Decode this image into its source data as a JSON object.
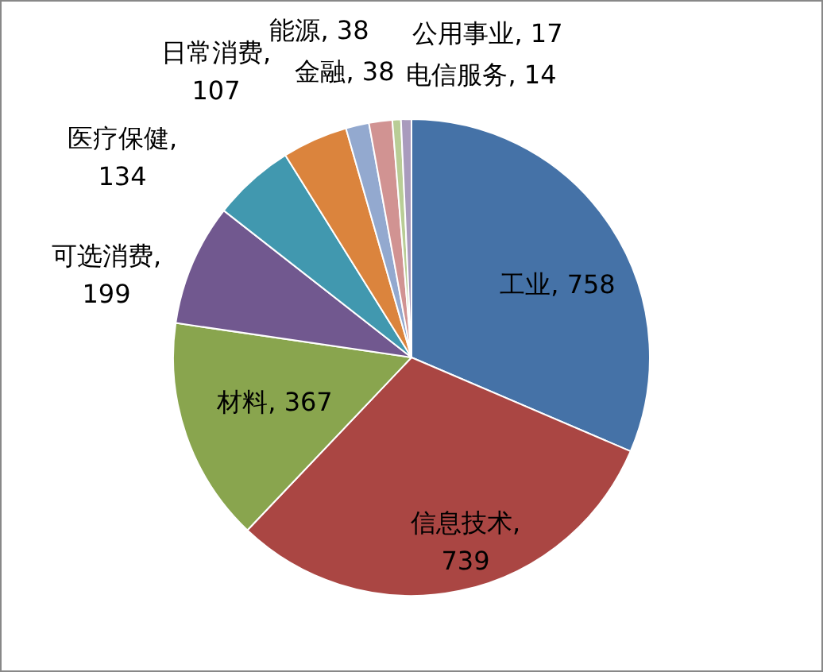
{
  "chart_data": {
    "type": "pie",
    "categories": [
      "工业",
      "信息技术",
      "材料",
      "可选消费",
      "医疗保健",
      "日常消费",
      "能源",
      "金融",
      "电信服务",
      "公用事业"
    ],
    "values": [
      758,
      739,
      367,
      199,
      134,
      107,
      38,
      38,
      14,
      17
    ],
    "value_labels": [
      ", 758",
      ", 739",
      ", 367",
      ", 199",
      ", 134",
      ", 107",
      ", 38",
      ", 38",
      ", 14",
      ", 17"
    ],
    "colors": [
      "#4572a7",
      "#aa4643",
      "#89a54e",
      "#71588f",
      "#4198af",
      "#db843d",
      "#93a9cf",
      "#d19392",
      "#b9cd96",
      "#a99bbd"
    ],
    "legend": false
  }
}
